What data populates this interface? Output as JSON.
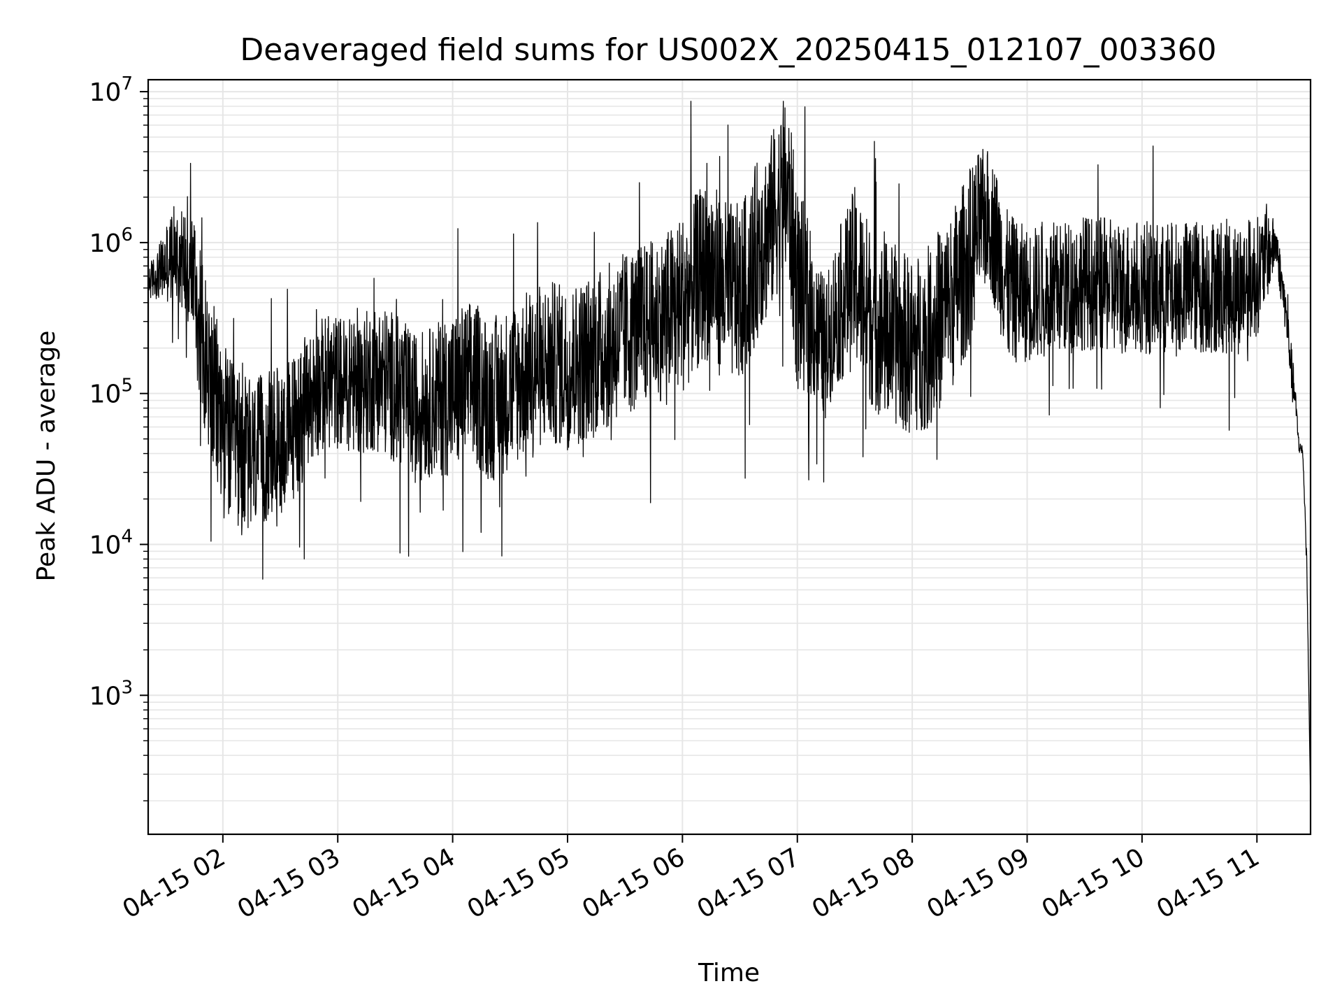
{
  "chart_data": {
    "type": "line",
    "title": "Deaveraged field sums for US002X_20250415_012107_003360",
    "xlabel": "Time",
    "ylabel": "Peak ADU - average",
    "y_scale": "log",
    "ylim": [
      120,
      12000000
    ],
    "xlim": [
      "2025-04-15 01:21",
      "2025-04-15 11:28"
    ],
    "x_ticks": [
      "04-15 02",
      "04-15 03",
      "04-15 04",
      "04-15 05",
      "04-15 06",
      "04-15 07",
      "04-15 08",
      "04-15 09",
      "04-15 10",
      "04-15 11"
    ],
    "y_ticks": [
      "10^3",
      "10^4",
      "10^5",
      "10^6",
      "10^7"
    ],
    "grid": true,
    "line_color": "#000000",
    "grid_color": "#e6e6e6",
    "series": [
      {
        "values_note_free": true,
        "x": [
          "2025-04-15 01:21",
          "2025-04-15 01:25",
          "2025-04-15 01:30",
          "2025-04-15 01:33",
          "2025-04-15 01:35",
          "2025-04-15 01:40",
          "2025-04-15 01:45",
          "2025-04-15 01:48",
          "2025-04-15 01:52",
          "2025-04-15 01:55",
          "2025-04-15 02:00",
          "2025-04-15 02:05",
          "2025-04-15 02:10",
          "2025-04-15 02:15",
          "2025-04-15 02:20",
          "2025-04-15 02:25",
          "2025-04-15 02:30",
          "2025-04-15 02:35",
          "2025-04-15 02:40",
          "2025-04-15 02:45",
          "2025-04-15 02:50",
          "2025-04-15 02:55",
          "2025-04-15 03:00",
          "2025-04-15 03:10",
          "2025-04-15 03:20",
          "2025-04-15 03:30",
          "2025-04-15 03:40",
          "2025-04-15 03:50",
          "2025-04-15 04:00",
          "2025-04-15 04:10",
          "2025-04-15 04:20",
          "2025-04-15 04:30",
          "2025-04-15 04:40",
          "2025-04-15 04:50",
          "2025-04-15 05:00",
          "2025-04-15 05:10",
          "2025-04-15 05:20",
          "2025-04-15 05:30",
          "2025-04-15 05:40",
          "2025-04-15 05:50",
          "2025-04-15 06:00",
          "2025-04-15 06:10",
          "2025-04-15 06:15",
          "2025-04-15 06:20",
          "2025-04-15 06:30",
          "2025-04-15 06:35",
          "2025-04-15 06:40",
          "2025-04-15 06:45",
          "2025-04-15 06:50",
          "2025-04-15 06:55",
          "2025-04-15 07:00",
          "2025-04-15 07:05",
          "2025-04-15 07:10",
          "2025-04-15 07:15",
          "2025-04-15 07:20",
          "2025-04-15 07:25",
          "2025-04-15 07:30",
          "2025-04-15 07:40",
          "2025-04-15 07:50",
          "2025-04-15 08:00",
          "2025-04-15 08:10",
          "2025-04-15 08:20",
          "2025-04-15 08:30",
          "2025-04-15 08:35",
          "2025-04-15 08:40",
          "2025-04-15 08:45",
          "2025-04-15 08:50",
          "2025-04-15 09:00",
          "2025-04-15 09:10",
          "2025-04-15 09:20",
          "2025-04-15 09:30",
          "2025-04-15 09:40",
          "2025-04-15 09:50",
          "2025-04-15 10:00",
          "2025-04-15 10:10",
          "2025-04-15 10:20",
          "2025-04-15 10:30",
          "2025-04-15 10:40",
          "2025-04-15 10:50",
          "2025-04-15 11:00",
          "2025-04-15 11:05",
          "2025-04-15 11:10",
          "2025-04-15 11:15",
          "2025-04-15 11:18",
          "2025-04-15 11:20",
          "2025-04-15 11:22",
          "2025-04-15 11:24",
          "2025-04-15 11:26",
          "2025-04-15 11:28"
        ],
        "base": [
          550000,
          600000,
          700000,
          800000,
          900000,
          750000,
          600000,
          300000,
          150000,
          100000,
          60000,
          45000,
          40000,
          38000,
          42000,
          45000,
          50000,
          55000,
          70000,
          90000,
          110000,
          120000,
          120000,
          110000,
          130000,
          110000,
          80000,
          90000,
          100000,
          120000,
          90000,
          110000,
          140000,
          160000,
          150000,
          170000,
          200000,
          250000,
          280000,
          320000,
          400000,
          600000,
          700000,
          500000,
          450000,
          600000,
          1000000,
          1200000,
          1800000,
          2200000,
          500000,
          400000,
          250000,
          200000,
          350000,
          450000,
          600000,
          300000,
          250000,
          200000,
          250000,
          400000,
          800000,
          1300000,
          1500000,
          900000,
          500000,
          450000,
          480000,
          500000,
          550000,
          520000,
          500000,
          520000,
          480000,
          500000,
          510000,
          520000,
          500000,
          600000,
          800000,
          1000000,
          350000,
          150000,
          90000,
          45000,
          40000,
          8000,
          200
        ],
        "amp": [
          0.12,
          0.15,
          0.25,
          0.3,
          0.3,
          0.35,
          0.45,
          0.5,
          0.55,
          0.6,
          0.6,
          0.55,
          0.55,
          0.5,
          0.5,
          0.5,
          0.5,
          0.5,
          0.5,
          0.45,
          0.45,
          0.45,
          0.45,
          0.45,
          0.5,
          0.5,
          0.5,
          0.5,
          0.55,
          0.55,
          0.55,
          0.55,
          0.55,
          0.55,
          0.55,
          0.55,
          0.55,
          0.55,
          0.55,
          0.55,
          0.6,
          0.6,
          0.6,
          0.6,
          0.6,
          0.6,
          0.6,
          0.6,
          0.6,
          0.6,
          0.7,
          0.6,
          0.5,
          0.45,
          0.5,
          0.55,
          0.6,
          0.6,
          0.6,
          0.6,
          0.6,
          0.6,
          0.6,
          0.5,
          0.45,
          0.5,
          0.5,
          0.45,
          0.45,
          0.45,
          0.45,
          0.45,
          0.45,
          0.45,
          0.45,
          0.45,
          0.45,
          0.45,
          0.45,
          0.4,
          0.3,
          0.15,
          0.15,
          0.15,
          0.1,
          0.05,
          0.05,
          0.05,
          0
        ]
      }
    ]
  }
}
